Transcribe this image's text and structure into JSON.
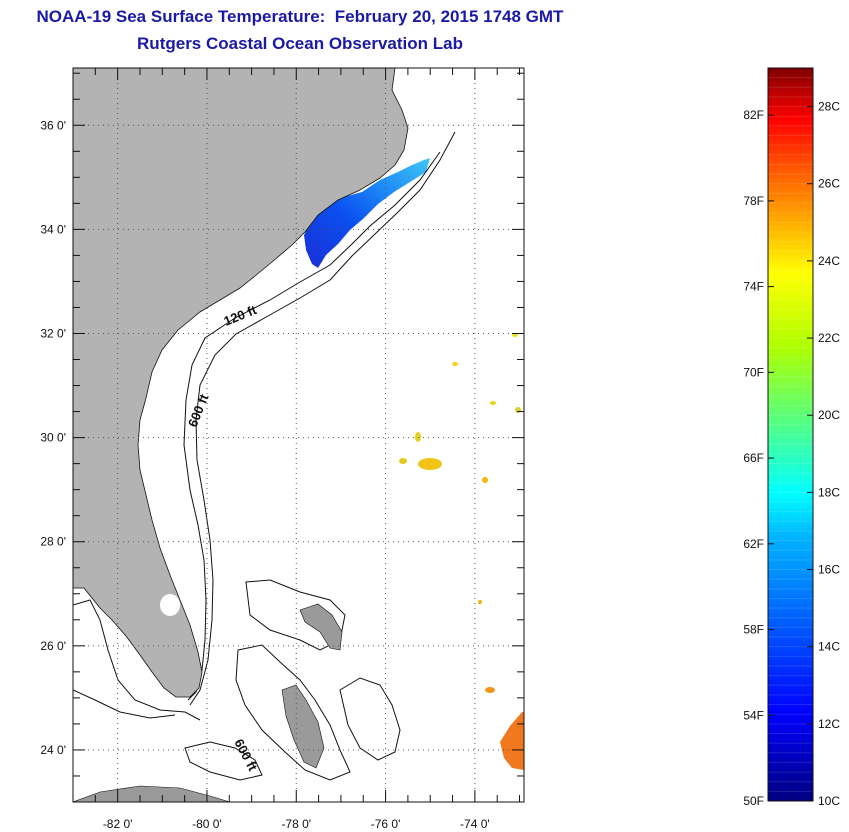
{
  "title": {
    "line1": "NOAA-19 Sea Surface Temperature:  February 20, 2015 1748 GMT",
    "line2": "Rutgers Coastal Ocean Observation Lab"
  },
  "map": {
    "lon_ticks": [
      {
        "value": -82,
        "label": "-82 0'"
      },
      {
        "value": -80,
        "label": "-80 0'"
      },
      {
        "value": -78,
        "label": "-78 0'"
      },
      {
        "value": -76,
        "label": "-76 0'"
      },
      {
        "value": -74,
        "label": "-74 0'"
      }
    ],
    "lat_ticks": [
      {
        "value": 36,
        "label": "36 0'"
      },
      {
        "value": 34,
        "label": "34 0'"
      },
      {
        "value": 32,
        "label": "32 0'"
      },
      {
        "value": 30,
        "label": "30 0'"
      },
      {
        "value": 28,
        "label": "28 0'"
      },
      {
        "value": 26,
        "label": "26 0'"
      },
      {
        "value": 24,
        "label": "24 0'"
      }
    ],
    "lon_range": [
      -83.0,
      -72.9
    ],
    "lat_range": [
      23.0,
      37.1
    ],
    "contour_labels": {
      "c120": "120 ft",
      "c600a": "600 ft",
      "c600b": "600 ft"
    },
    "colors": {
      "land": "#b3b3b3",
      "ocean": "#ffffff",
      "title": "#1a1aa6"
    }
  },
  "colorbar": {
    "fahrenheit_labels": [
      "82F",
      "78F",
      "74F",
      "70F",
      "66F",
      "62F",
      "58F",
      "54F",
      "50F"
    ],
    "celsius_labels": [
      "28C",
      "26C",
      "24C",
      "22C",
      "20C",
      "18C",
      "16C",
      "14C",
      "12C",
      "10C"
    ],
    "range_c": [
      10,
      29
    ]
  }
}
